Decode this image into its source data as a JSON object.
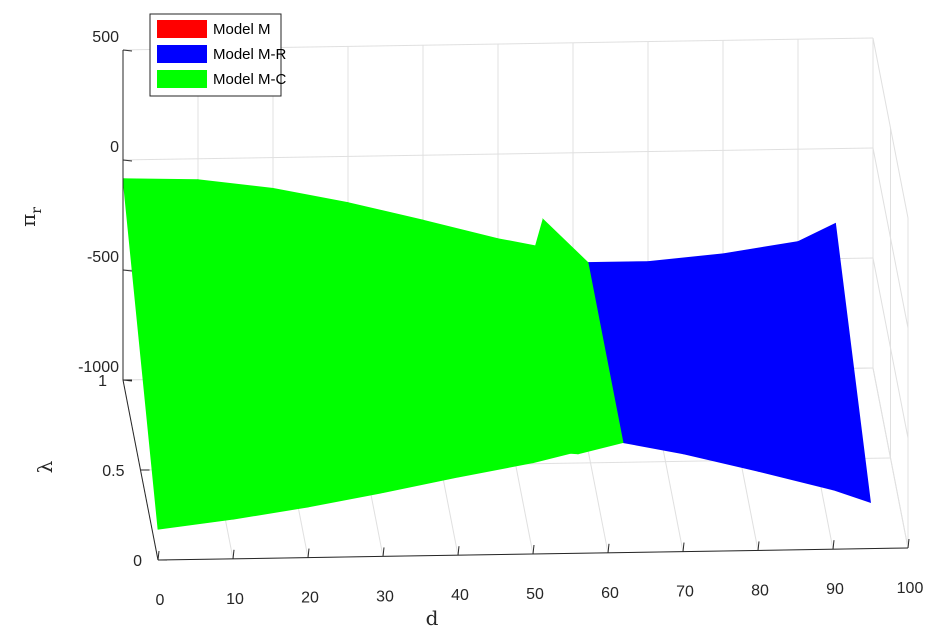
{
  "chart_data": {
    "type": "surface3d",
    "title": "",
    "xlabel": "d",
    "ylabel": "λ",
    "zlabel": "π",
    "zlabel_subscript": "r",
    "xlim": [
      0,
      100
    ],
    "ylim": [
      0,
      1
    ],
    "zlim": [
      -1000,
      500
    ],
    "x_ticks": [
      "0",
      "10",
      "20",
      "30",
      "40",
      "50",
      "60",
      "70",
      "80",
      "90",
      "100"
    ],
    "y_ticks": [
      "0",
      "0.5",
      "1"
    ],
    "z_ticks": [
      "-1000",
      "-500",
      "0",
      "500"
    ],
    "grid": true,
    "legend_position": "top-left",
    "colors": {
      "model_m": "#ff0000",
      "model_mr": "#0000ff",
      "model_mc": "#00ff00",
      "axis": "#262626",
      "grid": "#e0e0e0"
    },
    "series": [
      {
        "name": "Model M",
        "color": "#ff0000",
        "x": [],
        "z_at_lambda0": [],
        "z_at_lambda1": []
      },
      {
        "name": "Model M-R",
        "color": "#0000ff",
        "x": [
          62,
          70,
          80,
          90,
          95
        ],
        "z_at_lambda0": [
          -500,
          -555,
          -640,
          -730,
          -790
        ],
        "z_at_lambda1": [
          -500,
          -500,
          -470,
          -420,
          -340
        ]
      },
      {
        "name": "Model M-C",
        "color": "#00ff00",
        "x": [
          0,
          10,
          20,
          30,
          40,
          50,
          55,
          56,
          62
        ],
        "z_at_lambda0": [
          -860,
          -820,
          -770,
          -710,
          -645,
          -585,
          -545,
          -548,
          -500
        ],
        "z_at_lambda1": [
          -85,
          -95,
          -140,
          -210,
          -295,
          -385,
          -420,
          -300,
          -500
        ]
      }
    ]
  }
}
